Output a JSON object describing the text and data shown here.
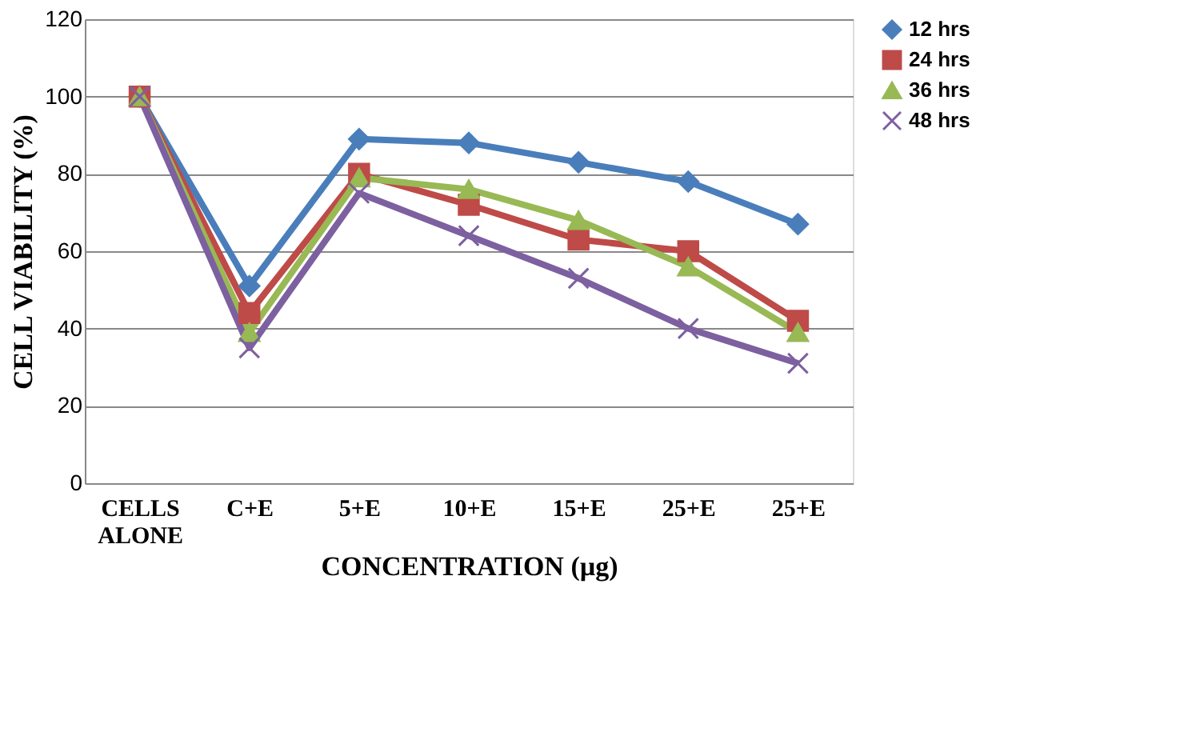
{
  "chart_data": {
    "type": "line",
    "xlabel": "CONCENTRATION (µg)",
    "ylabel": "CELL VIABILITY (%)",
    "categories": [
      "CELLS ALONE",
      "C+E",
      "5+E",
      "10+E",
      "15+E",
      "25+E",
      "25+E"
    ],
    "series": [
      {
        "name": "12 hrs",
        "color": "#4a7ebb",
        "marker": "diamond",
        "values": [
          100,
          51,
          89,
          88,
          83,
          78,
          67
        ]
      },
      {
        "name": "24 hrs",
        "color": "#be4b48",
        "marker": "square",
        "values": [
          100,
          44,
          80,
          72,
          63,
          60,
          42
        ]
      },
      {
        "name": "36 hrs",
        "color": "#98b954",
        "marker": "triangle",
        "values": [
          100,
          39,
          79,
          76,
          68,
          56,
          39
        ]
      },
      {
        "name": "48 hrs",
        "color": "#7d60a0",
        "marker": "cross",
        "values": [
          100,
          35,
          75,
          64,
          53,
          40,
          31
        ]
      }
    ],
    "ylim": [
      0,
      120
    ],
    "yticks": [
      0,
      20,
      40,
      60,
      80,
      100,
      120
    ],
    "grid": "y",
    "legend": "right",
    "line_style": "solid"
  }
}
